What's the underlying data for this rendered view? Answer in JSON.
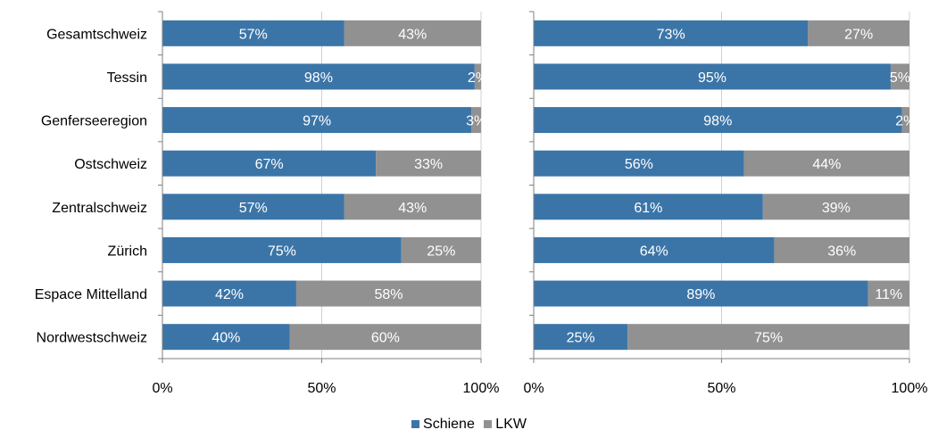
{
  "colors": {
    "schiene": "#3b75a8",
    "lkw": "#919191",
    "axis": "#7f7f7f"
  },
  "chart_data": [
    {
      "type": "bar",
      "orientation": "horizontal",
      "stacked": true,
      "categories": [
        "Gesamtschweiz",
        "Tessin",
        "Genferseeregion",
        "Ostschweiz",
        "Zentralschweiz",
        "Zürich",
        "Espace Mittelland",
        "Nordwestschweiz"
      ],
      "series": [
        {
          "name": "Schiene",
          "values": [
            57,
            98,
            97,
            67,
            57,
            75,
            42,
            40
          ],
          "labels": [
            "57%",
            "98%",
            "97%",
            "67%",
            "57%",
            "75%",
            "42%",
            "40%"
          ]
        },
        {
          "name": "LKW",
          "values": [
            43,
            2,
            3,
            33,
            43,
            25,
            58,
            60
          ],
          "labels": [
            "43%",
            "2%",
            "3%",
            "33%",
            "43%",
            "25%",
            "58%",
            "60%"
          ]
        }
      ],
      "xlim": [
        0,
        100
      ],
      "xticks": [
        "0%",
        "50%",
        "100%"
      ],
      "grid": true
    },
    {
      "type": "bar",
      "orientation": "horizontal",
      "stacked": true,
      "categories": [
        "Gesamtschweiz",
        "Tessin",
        "Genferseeregion",
        "Ostschweiz",
        "Zentralschweiz",
        "Zürich",
        "Espace Mittelland",
        "Nordwestschweiz"
      ],
      "series": [
        {
          "name": "Schiene",
          "values": [
            73,
            95,
            98,
            56,
            61,
            64,
            89,
            25
          ],
          "labels": [
            "73%",
            "95%",
            "98%",
            "56%",
            "61%",
            "64%",
            "89%",
            "25%"
          ]
        },
        {
          "name": "LKW",
          "values": [
            27,
            5,
            2,
            44,
            39,
            36,
            11,
            75
          ],
          "labels": [
            "27%",
            "5%",
            "2%",
            "44%",
            "39%",
            "36%",
            "11%",
            "75%"
          ]
        }
      ],
      "xlim": [
        0,
        100
      ],
      "xticks": [
        "0%",
        "50%",
        "100%"
      ],
      "grid": true
    }
  ],
  "legend": {
    "position": "bottom",
    "items": [
      "Schiene",
      "LKW"
    ]
  }
}
